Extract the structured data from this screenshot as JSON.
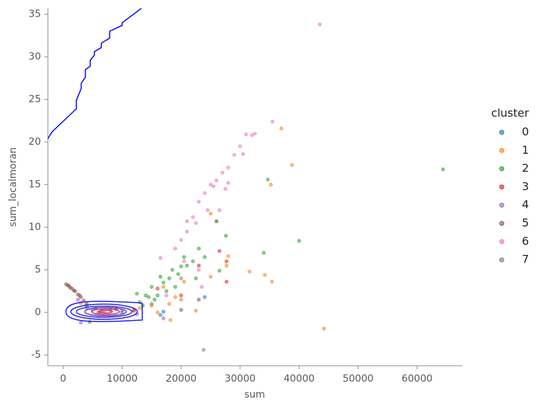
{
  "chart_data": {
    "type": "scatter",
    "xlabel": "sum",
    "ylabel": "sum_localmoran",
    "xlim": [
      -2588,
      67647
    ],
    "ylim": [
      -6.26,
      35.7
    ],
    "xticks": [
      0,
      10000,
      20000,
      30000,
      40000,
      50000,
      60000
    ],
    "yticks": [
      -5,
      0,
      5,
      10,
      15,
      20,
      25,
      30,
      35
    ],
    "legend_title": "cluster",
    "legend_position": "right",
    "series": [
      {
        "name": "0",
        "color": "#1f77b4",
        "x": [
          24000,
          17000,
          5500,
          6500,
          8000,
          4000,
          10000,
          16500
        ],
        "y": [
          1.8,
          0.1,
          0.5,
          0.2,
          0.3,
          0.8,
          0,
          -0.3
        ]
      },
      {
        "name": "1",
        "color": "#ff7f0e",
        "x": [
          37000,
          38800,
          35200,
          44200,
          34200,
          35400,
          31600,
          27700,
          28000,
          25000,
          25000,
          20500,
          19000,
          18000,
          15000,
          13000,
          18200,
          22500,
          12000,
          3000,
          17000,
          20000,
          16000
        ],
        "y": [
          21.6,
          17.3,
          15,
          -1.9,
          4.4,
          3.6,
          4.8,
          5.5,
          6.6,
          11.6,
          4.2,
          3.6,
          1.8,
          1,
          0.8,
          0.5,
          -0.9,
          0.2,
          0.3,
          1.1,
          3,
          1.5,
          0
        ]
      },
      {
        "name": "2",
        "color": "#2ca02c",
        "x": [
          64400,
          34700,
          40000,
          34000,
          27600,
          26000,
          26500,
          24000,
          23000,
          22000,
          21000,
          20000,
          19500,
          18000,
          17000,
          16500,
          15000,
          14000,
          13000,
          12500,
          15500,
          16000,
          18500,
          19000,
          4500,
          20500,
          22500,
          17500,
          13500,
          14500
        ],
        "y": [
          16.8,
          15.6,
          8.4,
          7,
          9,
          10.7,
          4.9,
          6.5,
          7.5,
          6,
          5.5,
          5.4,
          4.5,
          4,
          3.5,
          4.2,
          3,
          2,
          1.2,
          2.2,
          1.5,
          2,
          5,
          3,
          -1.1,
          6.5,
          4,
          2.5,
          0.8,
          1.8
        ]
      },
      {
        "name": "3",
        "color": "#d62728",
        "x": [
          27700,
          27700,
          26500,
          23000,
          16000,
          12000,
          6000,
          9000,
          20000
        ],
        "y": [
          6,
          3.6,
          7.2,
          5.5,
          2.8,
          0.2,
          0,
          0.4,
          2
        ]
      },
      {
        "name": "4",
        "color": "#9467bd",
        "x": [
          3000,
          4000,
          5000,
          7000,
          10000,
          12500,
          17000,
          2500
        ],
        "y": [
          -1.2,
          0.5,
          0.3,
          0.1,
          0.2,
          -0.2,
          -0.7,
          1.5
        ]
      },
      {
        "name": "5",
        "color": "#8c564b",
        "x": [
          500,
          1000,
          1500,
          2000,
          2500,
          3000,
          3500,
          4000,
          800,
          1200,
          1800,
          2800,
          23000,
          20000
        ],
        "y": [
          3.3,
          3.1,
          2.8,
          2.5,
          2.1,
          1.8,
          1.4,
          1,
          3.2,
          2.9,
          2.6,
          2,
          1.5,
          0.3
        ]
      },
      {
        "name": "6",
        "color": "#e377c2",
        "x": [
          19000,
          20000,
          21000,
          22000,
          23000,
          24000,
          25000,
          26000,
          27000,
          28000,
          29000,
          30000,
          31000,
          32000,
          32500,
          35500,
          43500,
          22500,
          24500,
          26500,
          20500,
          23000,
          17500,
          25500,
          27500,
          30500,
          16500,
          21000,
          28000,
          23500
        ],
        "y": [
          7.5,
          8.5,
          10.7,
          11.2,
          13,
          14,
          15,
          15.5,
          16.4,
          17,
          18.5,
          19.5,
          20.9,
          20.8,
          21,
          22.4,
          33.8,
          10.5,
          12,
          12,
          6,
          5,
          2,
          14.8,
          14.5,
          18.6,
          6.4,
          9.5,
          15.2,
          3
        ]
      },
      {
        "name": "7",
        "color": "#7f7f7f",
        "x": [
          23800,
          26000,
          20000,
          15000,
          2000
        ],
        "y": [
          -4.4,
          10.7,
          4,
          1,
          2.5
        ]
      }
    ],
    "line": {
      "color": "#0000ff",
      "x": [
        -2588,
        -1882,
        2235,
        2235,
        3059,
        3059,
        3765,
        3765,
        4588,
        4588,
        5294,
        5294,
        6471,
        6471,
        7882,
        7882,
        10000,
        10000,
        13647
      ],
      "y": [
        20.4,
        21.2,
        23.9,
        24.9,
        26.3,
        26.9,
        27.6,
        28.5,
        28.9,
        29.6,
        30.2,
        30.6,
        31.1,
        31.6,
        32.2,
        33.0,
        33.7,
        34.0,
        35.9
      ]
    }
  }
}
